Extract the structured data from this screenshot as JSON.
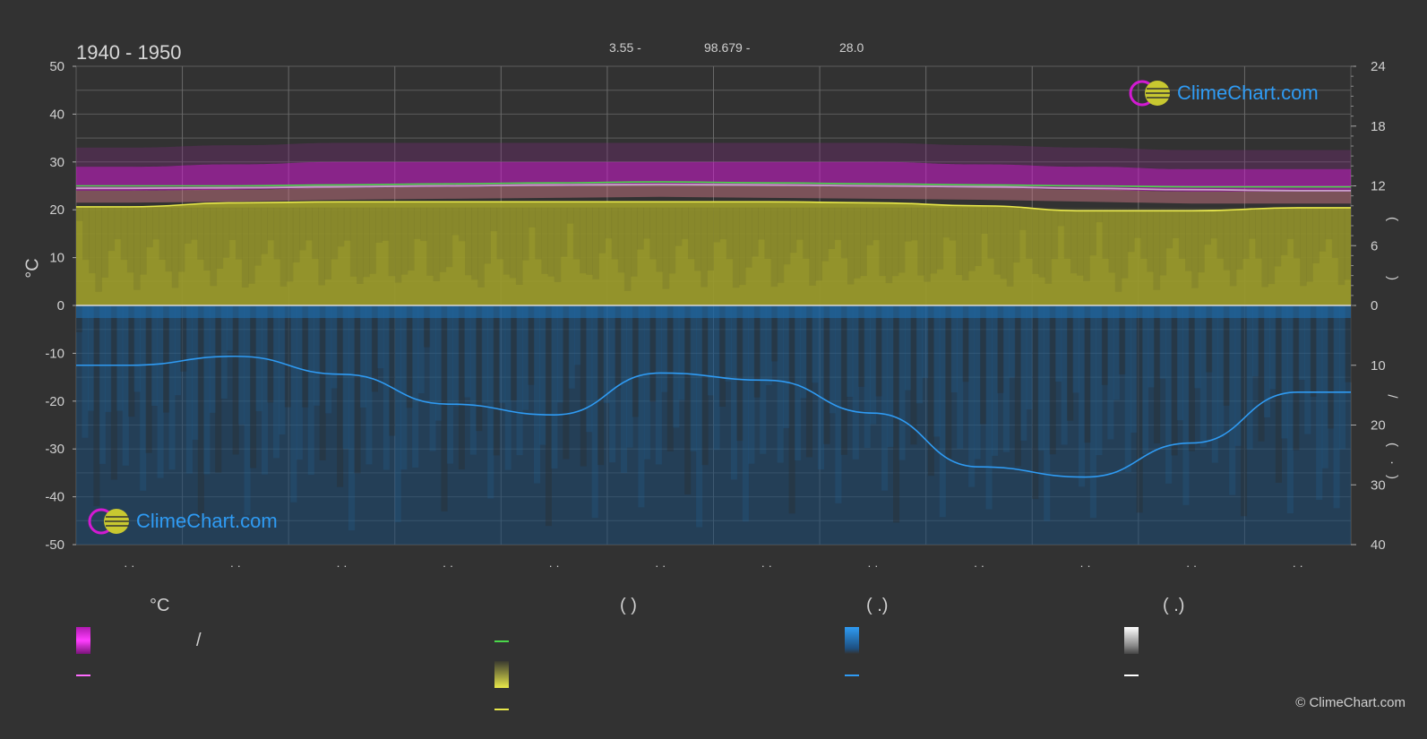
{
  "header": {
    "title": "1940 - 1950",
    "info1": "3.55 -",
    "info2": "98.679 -",
    "info3": "28.0"
  },
  "left_axis_label": "°C",
  "right_axis_marks": [
    "(",
    ")",
    "/",
    "(",
    "·",
    ")"
  ],
  "legend": {
    "temp_header": "°C",
    "sun_header": "(          )",
    "rain_header": "(   .)",
    "snow_header": "(   .)",
    "slash": "/"
  },
  "logo": {
    "text": "ClimeChart.com"
  },
  "copyright": "© ClimeChart.com",
  "colors": {
    "background": "#323232",
    "max_band": "#d21ad2",
    "sunshine_band": "#9b9b2a",
    "precip_band": "#1e6aa8",
    "mean_temp_line": "#ff9d3a",
    "daylight_line": "#4ad84a",
    "sunshine_line": "#e8e84a",
    "precip_line": "#2f9bf3",
    "snow": "#ffffff"
  },
  "chart_data": {
    "type": "area",
    "months": [
      "· ·",
      "· ·",
      "· ·",
      "· ·",
      "· ·",
      "· ·",
      "· ·",
      "· ·",
      "· ·",
      "· ·",
      "· ·",
      "· ·"
    ],
    "left_axis": {
      "min": -50,
      "max": 50,
      "ticks": [
        50,
        40,
        30,
        20,
        10,
        0,
        -10,
        -20,
        -30,
        -40,
        -50
      ]
    },
    "right_axis_hours": {
      "min": 0,
      "max": 24,
      "ticks": [
        24,
        18,
        12,
        6,
        0
      ]
    },
    "right_axis_precip": {
      "min": 0,
      "max": 40,
      "ticks": [
        10,
        20,
        30,
        40
      ]
    },
    "series": [
      {
        "key": "temp_max_band_top",
        "values": [
          29,
          29.5,
          30,
          30,
          30,
          30,
          30,
          30,
          29.5,
          29,
          28.5,
          28.5
        ]
      },
      {
        "key": "temp_max_band_bottom",
        "values": [
          24,
          24.2,
          24.6,
          24.8,
          25,
          25.2,
          25,
          24.8,
          24.6,
          24.2,
          23.8,
          23.8
        ]
      },
      {
        "key": "daylight_hours",
        "values": [
          12.0,
          12.0,
          12.1,
          12.2,
          12.3,
          12.4,
          12.3,
          12.2,
          12.1,
          12.0,
          11.9,
          11.9
        ]
      },
      {
        "key": "mean_temp",
        "values": [
          24.5,
          24.6,
          24.8,
          25.0,
          25.2,
          25.3,
          25.2,
          25.0,
          24.8,
          24.5,
          24.2,
          24.0
        ]
      },
      {
        "key": "sunshine_hours",
        "values": [
          9.9,
          10.3,
          10.4,
          10.4,
          10.4,
          10.4,
          10.4,
          10.3,
          10.0,
          9.5,
          9.5,
          9.8
        ]
      },
      {
        "key": "precipitation_mm",
        "values": [
          10.0,
          8.5,
          11.5,
          16.5,
          18.3,
          11.3,
          12.5,
          18.0,
          27.0,
          28.7,
          23.0,
          14.5
        ]
      }
    ]
  }
}
